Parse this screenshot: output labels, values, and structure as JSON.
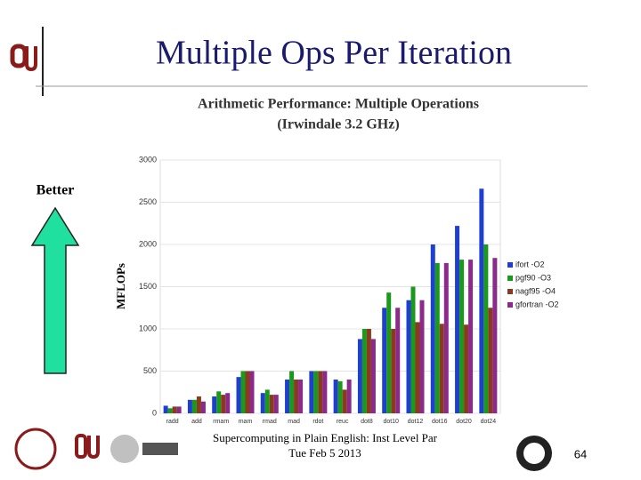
{
  "slide": {
    "title": "Multiple Ops Per Iteration",
    "better": "Better",
    "footer": [
      "Supercomputing in Plain English: Inst Level Par",
      "Tue Feb 5 2013"
    ],
    "page": "64"
  },
  "chart_data": {
    "type": "bar",
    "title": [
      "Arithmetic Performance: Multiple Operations",
      "(Irwindale 3.2 GHz)"
    ],
    "ylabel": "MFLOPs",
    "categories": [
      "radd",
      "add",
      "rmam",
      "mam",
      "rmad",
      "mad",
      "rdot",
      "reuc",
      "dot8",
      "dot10",
      "dot12",
      "dot16",
      "dot20",
      "dot24"
    ],
    "series": [
      {
        "name": "ifort -O2",
        "color": "#1f3fd0",
        "values": [
          90,
          160,
          200,
          430,
          240,
          400,
          500,
          400,
          880,
          1250,
          1340,
          2000,
          2220,
          2660
        ]
      },
      {
        "name": "pgf90 -O3",
        "color": "#1a9a1a",
        "values": [
          60,
          160,
          260,
          500,
          280,
          500,
          500,
          380,
          1000,
          1430,
          1500,
          1780,
          1820,
          2000
        ]
      },
      {
        "name": "nagf95 -O4",
        "color": "#8b3a1f",
        "values": [
          80,
          200,
          220,
          500,
          220,
          400,
          500,
          280,
          1000,
          1000,
          1080,
          1060,
          1050,
          1250
        ]
      },
      {
        "name": "gfortran -O2",
        "color": "#8b2a8b",
        "values": [
          80,
          140,
          240,
          500,
          220,
          400,
          500,
          400,
          880,
          1250,
          1340,
          1780,
          1820,
          1840
        ]
      }
    ],
    "ylim": [
      0,
      3000
    ],
    "yticks": [
      0,
      500,
      1000,
      1500,
      2000,
      2500,
      3000
    ],
    "grid": true,
    "legend": "right"
  }
}
